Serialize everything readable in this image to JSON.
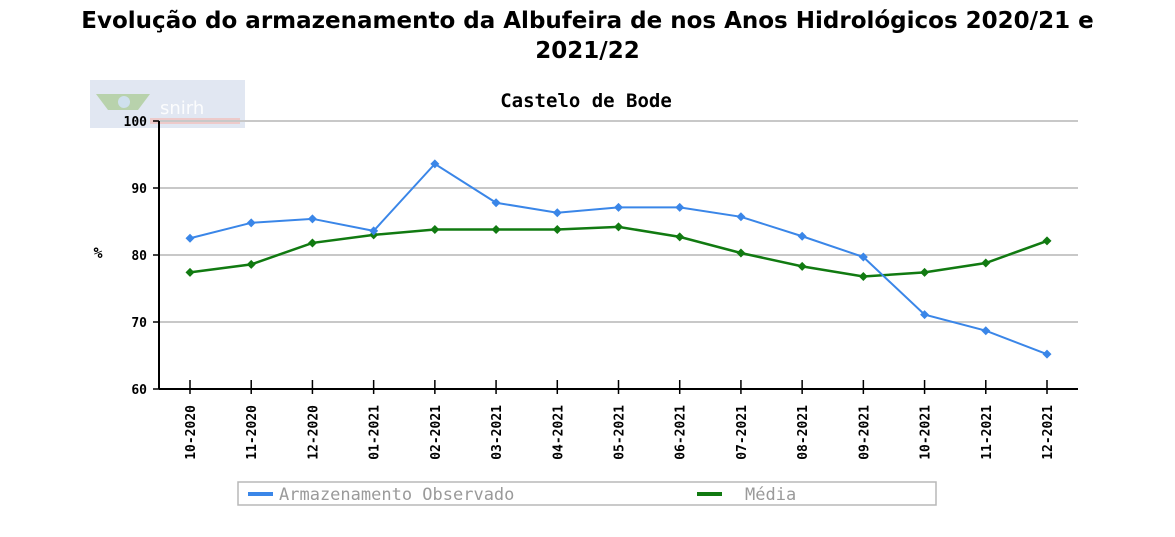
{
  "page": {
    "title_line1": "Evolução do armazenamento da Albufeira de nos Anos Hidrológicos 2020/21 e",
    "title_line2": "2021/22"
  },
  "logo": {
    "icon": "snirh-logo-icon",
    "text": "snirh"
  },
  "chart_data": {
    "type": "line",
    "title": "Castelo de Bode",
    "ylabel": "%",
    "xlabel": "",
    "ylim": [
      60,
      100
    ],
    "yticks": [
      60,
      70,
      80,
      90,
      100
    ],
    "grid": true,
    "legend_position": "bottom",
    "categories": [
      "10-2020",
      "11-2020",
      "12-2020",
      "01-2021",
      "02-2021",
      "03-2021",
      "04-2021",
      "05-2021",
      "06-2021",
      "07-2021",
      "08-2021",
      "09-2021",
      "10-2021",
      "11-2021",
      "12-2021"
    ],
    "series": [
      {
        "name": "Armazenamento Observado",
        "color": "#3a86e8",
        "values": [
          82.5,
          84.8,
          85.4,
          83.6,
          93.6,
          87.8,
          86.3,
          87.1,
          87.1,
          85.7,
          82.8,
          79.7,
          71.1,
          68.7,
          65.2
        ]
      },
      {
        "name": "Média",
        "color": "#117a11",
        "values": [
          77.4,
          78.6,
          81.8,
          83.0,
          83.8,
          83.8,
          83.8,
          84.2,
          82.7,
          80.3,
          78.3,
          76.8,
          77.4,
          78.8,
          82.1
        ]
      }
    ]
  }
}
